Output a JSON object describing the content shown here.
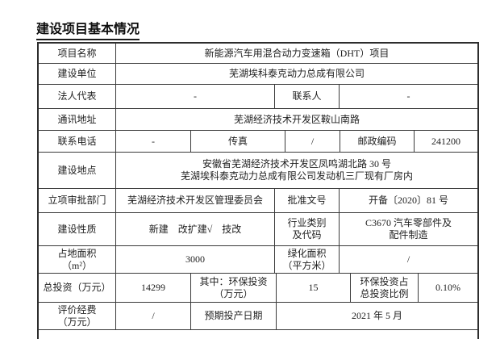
{
  "title": "建设项目基本情况",
  "colors": {
    "border": "#3a3a3a",
    "text": "#1f1f1f",
    "background": "#ffffff"
  },
  "table": {
    "rows": [
      {
        "cells": [
          {
            "text": "项目名称"
          },
          {
            "text": "新能源汽车用混合动力变速箱（DHT）项目"
          }
        ]
      },
      {
        "cells": [
          {
            "text": "建设单位"
          },
          {
            "text": "芜湖埃科泰克动力总成有限公司"
          }
        ]
      },
      {
        "cells": [
          {
            "text": "法人代表"
          },
          {
            "text": "-"
          },
          {
            "text": "联系人"
          },
          {
            "text": "-"
          }
        ]
      },
      {
        "cells": [
          {
            "text": "通讯地址"
          },
          {
            "text": "芜湖经济技术开发区鞍山南路"
          }
        ]
      },
      {
        "cells": [
          {
            "text": "联系电话"
          },
          {
            "text": "-"
          },
          {
            "text": "传真"
          },
          {
            "text": "/"
          },
          {
            "text": "邮政编码"
          },
          {
            "text": "241200"
          }
        ]
      },
      {
        "cells": [
          {
            "text": "建设地点"
          },
          {
            "line1": "安徽省芜湖经济技术开发区凤鸣湖北路 30 号",
            "line2": "芜湖埃科泰克动力总成有限公司发动机三厂现有厂房内"
          }
        ]
      },
      {
        "cells": [
          {
            "text": "立项审批部门"
          },
          {
            "text": "芜湖经济技术开发区管理委员会"
          },
          {
            "text": "批准文号"
          },
          {
            "text": "开备〔2020〕81 号"
          }
        ]
      },
      {
        "cells": [
          {
            "text": "建设性质"
          },
          {
            "text": "新建　改扩建√　技改"
          },
          {
            "line1": "行业类别",
            "line2": "及代码"
          },
          {
            "line1": "C3670 汽车零部件及",
            "line2": "配件制造"
          }
        ]
      },
      {
        "cells": [
          {
            "line1": "占地面积",
            "line2": "（m²）"
          },
          {
            "text": "3000"
          },
          {
            "line1": "绿化面积",
            "line2": "（平方米）"
          },
          {
            "text": "/"
          }
        ]
      },
      {
        "cells": [
          {
            "text": "总投资（万元）"
          },
          {
            "text": "14299"
          },
          {
            "line1": "其中：环保投资",
            "line2": "（万元）"
          },
          {
            "text": "15"
          },
          {
            "line1": "环保投资占",
            "line2": "总投资比例"
          },
          {
            "text": "0.10%"
          }
        ]
      },
      {
        "cells": [
          {
            "line1": "评价经费",
            "line2": "（万元）"
          },
          {
            "text": "/"
          },
          {
            "text": "预期投产日期"
          },
          {
            "text": "2021 年 5 月"
          }
        ]
      }
    ]
  }
}
